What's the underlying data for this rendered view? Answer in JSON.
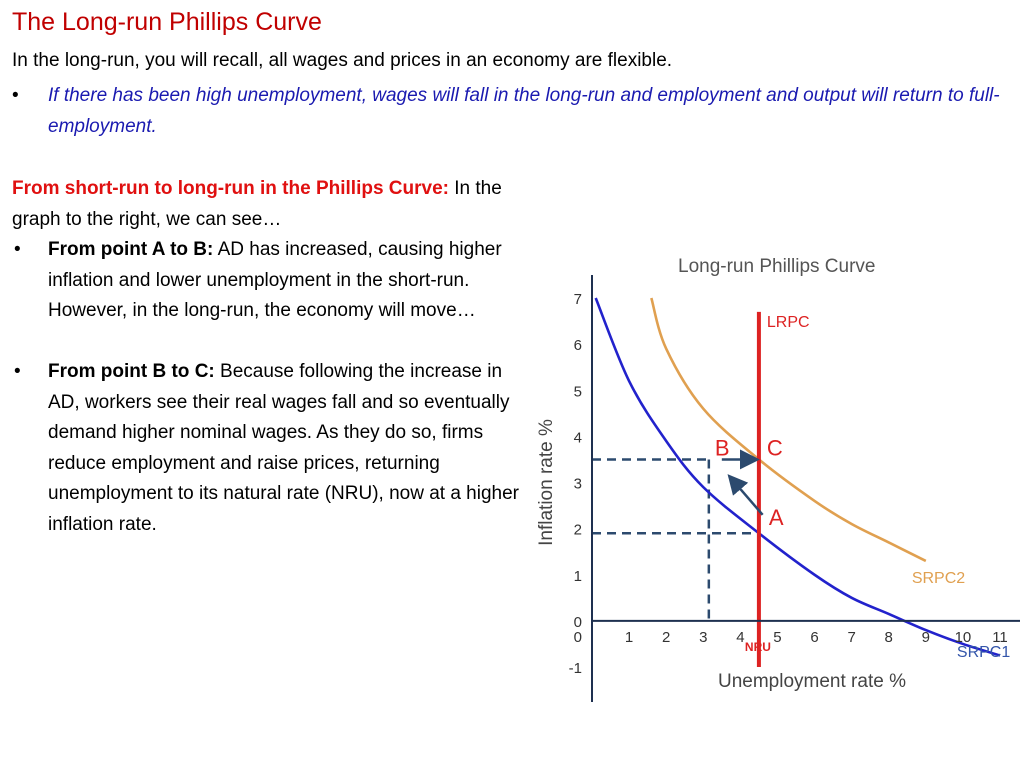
{
  "slide": {
    "title": "The Long-run Phillips Curve",
    "intro": "In the long-run, you will recall, all wages and prices in an economy are flexible.",
    "intro_bullet": "If there has been high unemployment, wages will fall in the long-run and employment and output will return to full-employment.",
    "bullet_symbol": "•",
    "section_heading": "From short-run to long-run in the Phillips Curve:",
    "section_text": " In the graph to the right, we can see…",
    "bullets": [
      {
        "bold": "From point A to B:",
        "text": " AD has increased, causing higher inflation and lower unemployment in the short-run. However, in the long-run, the economy will move…"
      },
      {
        "bold": "From point B to C:",
        "text": " Because following the increase in AD, workers see their real wages fall and so eventually demand higher nominal wages. As they do so, firms reduce employment and raise prices, returning unemployment to its natural rate (NRU), now at a higher inflation rate."
      }
    ]
  },
  "colors": {
    "title": "#c00000",
    "intro_bullet": "#1a1ab0",
    "srpc1": "#2222cc",
    "srpc2": "#e0a050",
    "lrpc": "#dd2222",
    "dashed": "#2c4a6e",
    "labels": "#dd2222",
    "curve_label": "#3355aa",
    "axis": "#1e3050"
  },
  "chart_data": {
    "type": "line",
    "title": "Long-run Phillips Curve",
    "xlabel": "Unemployment rate %",
    "ylabel": "Inflation rate %",
    "xlim": [
      0,
      11
    ],
    "ylim": [
      -1,
      7
    ],
    "x_ticks": [
      "1",
      "2",
      "3",
      "4",
      "5",
      "6",
      "7",
      "8",
      "9",
      "10",
      "11"
    ],
    "y_ticks": [
      "-1",
      "0",
      "1",
      "2",
      "3",
      "4",
      "5",
      "6",
      "7"
    ],
    "nru_label": "NRU",
    "nru_x": 4.5,
    "series": [
      {
        "name": "SRPC1",
        "points": [
          [
            0.1,
            7
          ],
          [
            1,
            5.2
          ],
          [
            2,
            3.9
          ],
          [
            3,
            2.9
          ],
          [
            4.5,
            1.9
          ],
          [
            6,
            1.0
          ],
          [
            7,
            0.5
          ],
          [
            8,
            0.15
          ],
          [
            9,
            -0.2
          ],
          [
            10,
            -0.5
          ],
          [
            11,
            -0.75
          ]
        ]
      },
      {
        "name": "SRPC2",
        "points": [
          [
            1.6,
            7
          ],
          [
            2,
            5.9
          ],
          [
            3,
            4.6
          ],
          [
            4.5,
            3.5
          ],
          [
            6,
            2.6
          ],
          [
            7,
            2.1
          ],
          [
            8,
            1.7
          ],
          [
            9,
            1.3
          ]
        ]
      },
      {
        "name": "LRPC",
        "points": [
          [
            4.5,
            -1
          ],
          [
            4.5,
            6.7
          ]
        ]
      }
    ],
    "points": [
      {
        "label": "A",
        "x": 4.5,
        "y": 1.9
      },
      {
        "label": "B",
        "x": 3.15,
        "y": 3.5
      },
      {
        "label": "C",
        "x": 4.5,
        "y": 3.5
      }
    ],
    "guides": [
      {
        "x": 3.15,
        "y": 3.5
      },
      {
        "x": 4.5,
        "y": 1.9
      }
    ],
    "arrows": [
      {
        "from": [
          3.5,
          3.5
        ],
        "to": [
          4.5,
          3.5
        ]
      },
      {
        "from": [
          4.6,
          2.3
        ],
        "to": [
          3.85,
          3.1
        ]
      }
    ]
  }
}
